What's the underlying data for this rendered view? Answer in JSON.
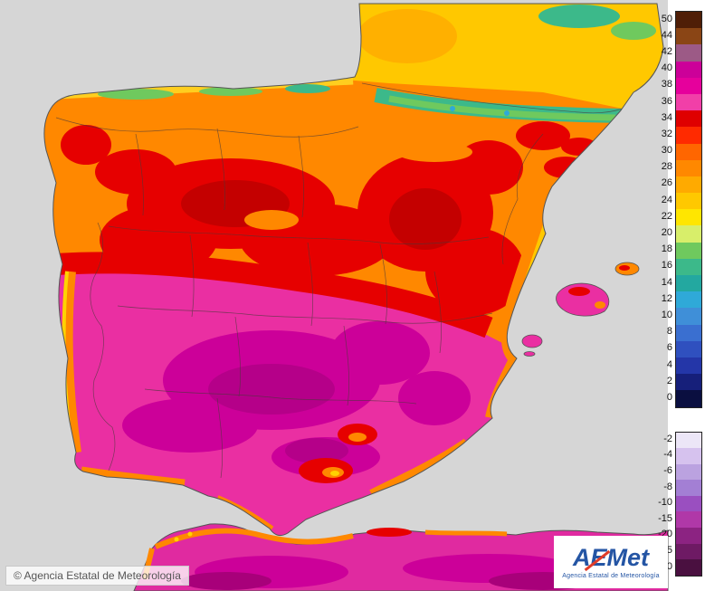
{
  "map": {
    "attribution": "© Agencia Estatal de Meteorología",
    "logo": {
      "text": "AEMet",
      "subtext": "Agencia Estatal de Meteorología"
    }
  },
  "chart_data": {
    "type": "heatmap",
    "region": "Iberian Peninsula, Balearic Islands and northern Africa temperature map",
    "legend_position": "right",
    "legend": {
      "positive_entries": [
        {
          "label": "50",
          "color": "#4f1e07"
        },
        {
          "label": "44",
          "color": "#8a4515"
        },
        {
          "label": "42",
          "color": "#9c5a86"
        },
        {
          "label": "40",
          "color": "#cc0099"
        },
        {
          "label": "38",
          "color": "#e6009c"
        },
        {
          "label": "36",
          "color": "#f13fa8"
        },
        {
          "label": "34",
          "color": "#df0000"
        },
        {
          "label": "32",
          "color": "#ff2a00"
        },
        {
          "label": "30",
          "color": "#ff6600"
        },
        {
          "label": "28",
          "color": "#ff8800"
        },
        {
          "label": "26",
          "color": "#ffaa00"
        },
        {
          "label": "24",
          "color": "#ffc800"
        },
        {
          "label": "22",
          "color": "#ffe600"
        },
        {
          "label": "20",
          "color": "#d8ee6a"
        },
        {
          "label": "18",
          "color": "#6fc95e"
        },
        {
          "label": "16",
          "color": "#3cb98a"
        },
        {
          "label": "14",
          "color": "#23a8a0"
        },
        {
          "label": "12",
          "color": "#2fa9d8"
        },
        {
          "label": "10",
          "color": "#3f8fd8"
        },
        {
          "label": "8",
          "color": "#3a6fd0"
        },
        {
          "label": "6",
          "color": "#2f50bf"
        },
        {
          "label": "4",
          "color": "#2436a8"
        },
        {
          "label": "2",
          "color": "#161f7a"
        },
        {
          "label": "0",
          "color": "#0a0f40"
        }
      ],
      "negative_entries": [
        {
          "label": "-2",
          "color": "#ece6f7"
        },
        {
          "label": "-4",
          "color": "#d6c2ee"
        },
        {
          "label": "-6",
          "color": "#bba2e0"
        },
        {
          "label": "-8",
          "color": "#a37fd4"
        },
        {
          "label": "-10",
          "color": "#9a4fc0"
        },
        {
          "label": "-15",
          "color": "#b038a8"
        },
        {
          "label": "-20",
          "color": "#8c2382"
        },
        {
          "label": "-25",
          "color": "#6e1a64"
        },
        {
          "label": "-30",
          "color": "#4a1040"
        }
      ]
    },
    "zones": [
      {
        "area": "Cantabrian coast and Pyrenees",
        "approx_value": "18-24"
      },
      {
        "area": "Northern plateau and Galicia interior",
        "approx_value": "26-32"
      },
      {
        "area": "Central mountains and eastern interior",
        "approx_value": "30-34"
      },
      {
        "area": "Southern half (Extremadura, La Mancha, Andalucía)",
        "approx_value": "34-38"
      },
      {
        "area": "Mediterranean coastal strip",
        "approx_value": "26-30"
      },
      {
        "area": "Southern France",
        "approx_value": "22-26"
      },
      {
        "area": "Northern Africa",
        "approx_value": "34-38"
      },
      {
        "area": "Balearic Islands",
        "approx_value": "28-36"
      }
    ]
  }
}
